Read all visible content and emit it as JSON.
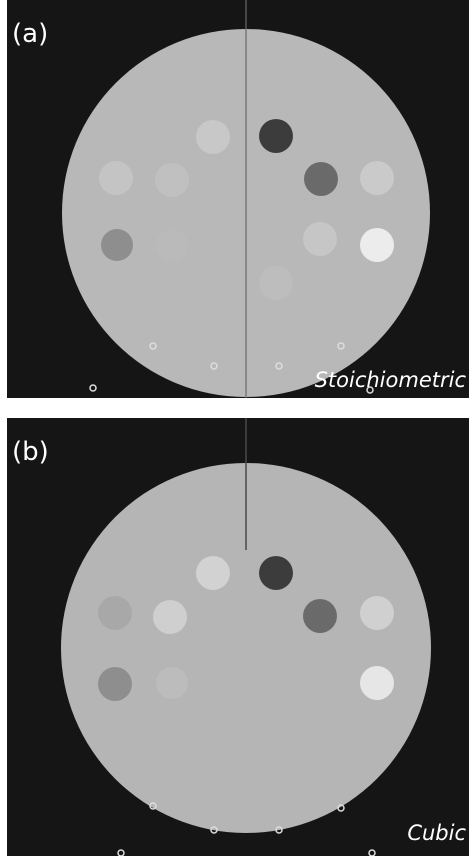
{
  "panels": [
    {
      "label": "(a)",
      "caption": "Stoichiometric"
    },
    {
      "label": "(b)",
      "caption": "Cubic"
    }
  ]
}
